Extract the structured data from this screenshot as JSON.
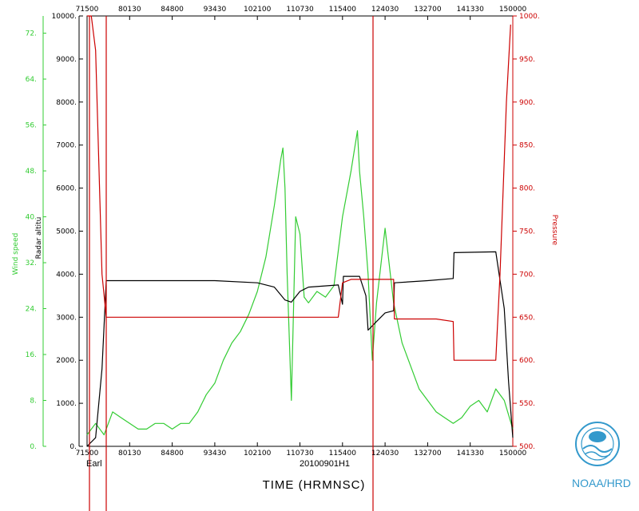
{
  "chart_data": {
    "type": "line",
    "xlabel": "TIME (HRMNSC)",
    "storm_label": "Earl",
    "flight_label": "20100901H1",
    "x_ticks_bottom": [
      "71500",
      "80130",
      "84800",
      "93430",
      "102100",
      "110730",
      "115400",
      "124030",
      "132700",
      "141330",
      "150000"
    ],
    "x_ticks_top": [
      "71500",
      "80130",
      "84800",
      "93430",
      "102100",
      "110730",
      "115400",
      "124030",
      "132700",
      "141330",
      "150000"
    ],
    "axes": {
      "wind": {
        "label": "Wind speed",
        "ticks": [
          "0.",
          "8.",
          "16.",
          "24.",
          "32.",
          "40.",
          "48.",
          "56.",
          "64.",
          "72."
        ],
        "ylim": [
          0,
          75
        ],
        "color": "#33cc33"
      },
      "alt": {
        "label": "Radar altitu",
        "ticks": [
          "0.",
          "1000.",
          "2000.",
          "3000.",
          "4000.",
          "5000.",
          "6000.",
          "7000.",
          "8000.",
          "9000.",
          "10000."
        ],
        "ylim": [
          0,
          10000
        ],
        "color": "#000000"
      },
      "pres": {
        "label": "Pressure",
        "ticks": [
          "500.",
          "550.",
          "600.",
          "650.",
          "700.",
          "750.",
          "800.",
          "850.",
          "900.",
          "950.",
          "1000."
        ],
        "ylim": [
          500,
          1000
        ],
        "color": "#cc0000"
      }
    },
    "series": [
      {
        "name": "Wind speed",
        "axis": "wind",
        "color": "#33cc33",
        "points": [
          [
            0,
            2
          ],
          [
            0.02,
            4
          ],
          [
            0.04,
            2
          ],
          [
            0.06,
            6
          ],
          [
            0.08,
            5
          ],
          [
            0.1,
            4
          ],
          [
            0.12,
            3
          ],
          [
            0.14,
            3
          ],
          [
            0.16,
            4
          ],
          [
            0.18,
            4
          ],
          [
            0.2,
            3
          ],
          [
            0.22,
            4
          ],
          [
            0.24,
            4
          ],
          [
            0.26,
            6
          ],
          [
            0.28,
            9
          ],
          [
            0.3,
            11
          ],
          [
            0.32,
            15
          ],
          [
            0.34,
            18
          ],
          [
            0.36,
            20
          ],
          [
            0.38,
            23
          ],
          [
            0.4,
            27
          ],
          [
            0.42,
            33
          ],
          [
            0.44,
            42
          ],
          [
            0.455,
            50
          ],
          [
            0.46,
            52
          ],
          [
            0.465,
            45
          ],
          [
            0.47,
            30
          ],
          [
            0.48,
            8
          ],
          [
            0.49,
            40
          ],
          [
            0.5,
            37
          ],
          [
            0.51,
            26
          ],
          [
            0.52,
            25
          ],
          [
            0.54,
            27
          ],
          [
            0.56,
            26
          ],
          [
            0.58,
            28
          ],
          [
            0.6,
            40
          ],
          [
            0.62,
            48
          ],
          [
            0.635,
            55
          ],
          [
            0.64,
            48
          ],
          [
            0.65,
            40
          ],
          [
            0.66,
            30
          ],
          [
            0.67,
            15
          ],
          [
            0.68,
            25
          ],
          [
            0.7,
            38
          ],
          [
            0.72,
            25
          ],
          [
            0.74,
            18
          ],
          [
            0.76,
            14
          ],
          [
            0.78,
            10
          ],
          [
            0.8,
            8
          ],
          [
            0.82,
            6
          ],
          [
            0.84,
            5
          ],
          [
            0.86,
            4
          ],
          [
            0.88,
            5
          ],
          [
            0.9,
            7
          ],
          [
            0.92,
            8
          ],
          [
            0.94,
            6
          ],
          [
            0.96,
            10
          ],
          [
            0.98,
            8
          ],
          [
            1.0,
            3
          ]
        ]
      },
      {
        "name": "Radar altitude",
        "axis": "alt",
        "color": "#000000",
        "points": [
          [
            0,
            0
          ],
          [
            0.02,
            200
          ],
          [
            0.035,
            1800
          ],
          [
            0.045,
            3850
          ],
          [
            0.2,
            3850
          ],
          [
            0.3,
            3850
          ],
          [
            0.4,
            3800
          ],
          [
            0.44,
            3700
          ],
          [
            0.465,
            3400
          ],
          [
            0.48,
            3350
          ],
          [
            0.5,
            3600
          ],
          [
            0.52,
            3700
          ],
          [
            0.59,
            3750
          ],
          [
            0.6,
            3300
          ],
          [
            0.602,
            3950
          ],
          [
            0.64,
            3950
          ],
          [
            0.655,
            3500
          ],
          [
            0.66,
            2700
          ],
          [
            0.68,
            2900
          ],
          [
            0.7,
            3100
          ],
          [
            0.72,
            3150
          ],
          [
            0.722,
            3800
          ],
          [
            0.8,
            3850
          ],
          [
            0.86,
            3900
          ],
          [
            0.862,
            4500
          ],
          [
            0.96,
            4520
          ],
          [
            0.98,
            3200
          ],
          [
            0.99,
            1500
          ],
          [
            1.0,
            200
          ]
        ]
      },
      {
        "name": "Pressure",
        "axis": "pres",
        "color": "#cc0000",
        "points": [
          [
            0,
            1000
          ],
          [
            0.01,
            1000
          ],
          [
            0.02,
            960
          ],
          [
            0.035,
            700
          ],
          [
            0.045,
            650
          ],
          [
            0.2,
            650
          ],
          [
            0.4,
            650
          ],
          [
            0.46,
            650
          ],
          [
            0.5,
            650
          ],
          [
            0.59,
            650
          ],
          [
            0.6,
            690
          ],
          [
            0.62,
            694
          ],
          [
            0.72,
            694
          ],
          [
            0.722,
            648
          ],
          [
            0.82,
            648
          ],
          [
            0.86,
            645
          ],
          [
            0.862,
            600
          ],
          [
            0.96,
            600
          ],
          [
            0.97,
            700
          ],
          [
            0.985,
            900
          ],
          [
            0.995,
            990
          ]
        ]
      }
    ]
  },
  "footer": {
    "org_label": "NOAA/HRD",
    "logo_text": "NOAA"
  }
}
